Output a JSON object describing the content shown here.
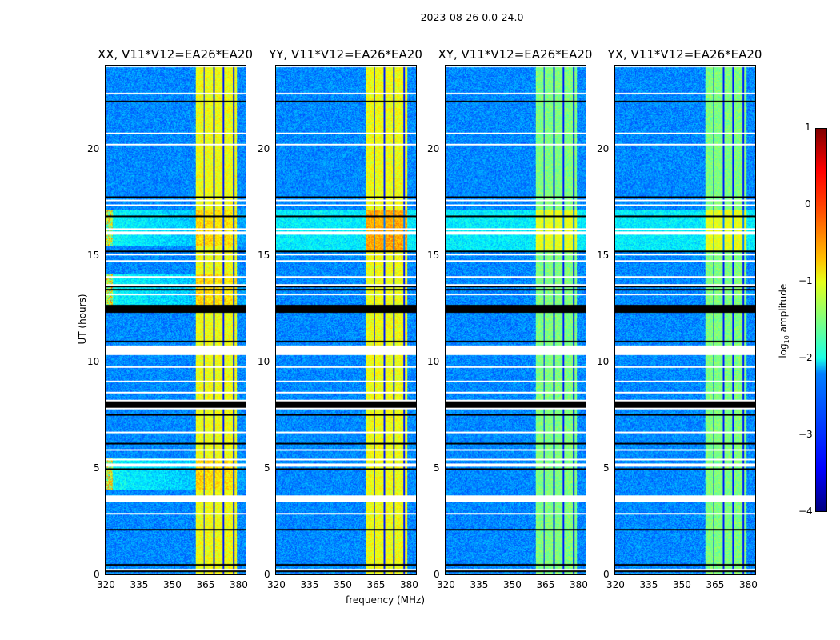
{
  "chart_data": {
    "type": "heatmap",
    "title": "2023-08-26 0.0-24.0",
    "panels": [
      {
        "title": "XX, V11*V12=EA26*EA20",
        "id": "xx"
      },
      {
        "title": "YY, V11*V12=EA26*EA20",
        "id": "yy"
      },
      {
        "title": "XY, V11*V12=EA26*EA20",
        "id": "xy"
      },
      {
        "title": "YX, V11*V12=EA26*EA20",
        "id": "yx"
      }
    ],
    "xlabel": "frequency (MHz)",
    "ylabel": "UT (hours)",
    "xlim": [
      320,
      384
    ],
    "ylim": [
      0,
      24
    ],
    "xticks": [
      "320",
      "335",
      "350",
      "365",
      "380"
    ],
    "xtick_values": [
      320,
      335,
      350,
      365,
      380
    ],
    "yticks": [
      "0",
      "5",
      "10",
      "15",
      "20"
    ],
    "ytick_values": [
      0,
      5,
      10,
      15,
      20
    ],
    "colorbar": {
      "label_pre": "log",
      "label_sub": "10",
      "label_post": " amplitude",
      "range": [
        -4,
        1
      ],
      "ticks": [
        "1",
        "0",
        "−1",
        "−2",
        "−3",
        "−4"
      ],
      "tick_values": [
        1,
        0,
        -1,
        -2,
        -3,
        -4
      ],
      "colormap": "jet"
    },
    "bright_band_MHz": [
      361,
      380
    ],
    "rfi_hours_XX": [
      [
        4,
        5.5
      ],
      [
        12.5,
        14.2
      ],
      [
        15.5,
        17.2
      ]
    ]
  }
}
